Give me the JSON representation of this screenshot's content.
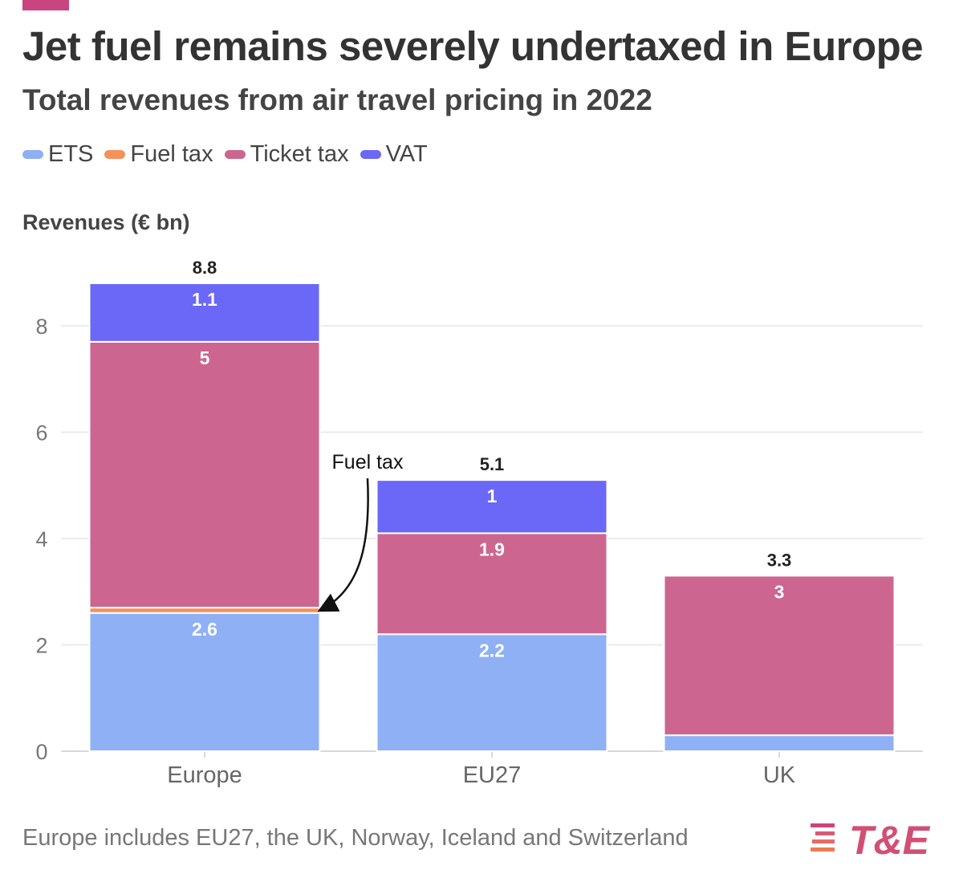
{
  "title": "Jet fuel remains severely undertaxed in Europe",
  "subtitle": "Total revenues from air travel pricing in 2022",
  "legend": [
    {
      "label": "ETS",
      "color": "#8fb0f5"
    },
    {
      "label": "Fuel tax",
      "color": "#f4915a"
    },
    {
      "label": "Ticket tax",
      "color": "#cc6690"
    },
    {
      "label": "VAT",
      "color": "#6b67f7"
    }
  ],
  "ylabel": "Revenues (€ bn)",
  "footnote": "Europe includes EU27, the UK, Norway, Iceland and Switzerland",
  "annotation": "Fuel tax",
  "logo_text": "T&E",
  "colors": {
    "brand": "#c9457e",
    "logo_accent": "#f07a50",
    "grid": "#e6e6e6",
    "axis": "#cccccc"
  },
  "chart_data": {
    "type": "bar",
    "stacked": true,
    "categories": [
      "Europe",
      "EU27",
      "UK"
    ],
    "series": [
      {
        "name": "ETS",
        "color": "#8fb0f5",
        "values": [
          2.6,
          2.2,
          0.3
        ],
        "labels": [
          "2.6",
          "2.2",
          ""
        ]
      },
      {
        "name": "Fuel tax",
        "color": "#f4915a",
        "values": [
          0.1,
          0,
          0
        ],
        "labels": [
          "",
          "",
          ""
        ]
      },
      {
        "name": "Ticket tax",
        "color": "#cc6690",
        "values": [
          5,
          1.9,
          3
        ],
        "labels": [
          "5",
          "1.9",
          "3"
        ]
      },
      {
        "name": "VAT",
        "color": "#6b67f7",
        "values": [
          1.1,
          1,
          0
        ],
        "labels": [
          "1.1",
          "1",
          ""
        ]
      }
    ],
    "totals": [
      8.8,
      5.1,
      3.3
    ],
    "total_labels": [
      "8.8",
      "5.1",
      "3.3"
    ],
    "ylim": [
      0,
      9
    ],
    "yticks": [
      0,
      2,
      4,
      6,
      8
    ],
    "ylabel": "Revenues (€ bn)",
    "xlabel": "",
    "grid": true,
    "legend_position": "top-left"
  }
}
